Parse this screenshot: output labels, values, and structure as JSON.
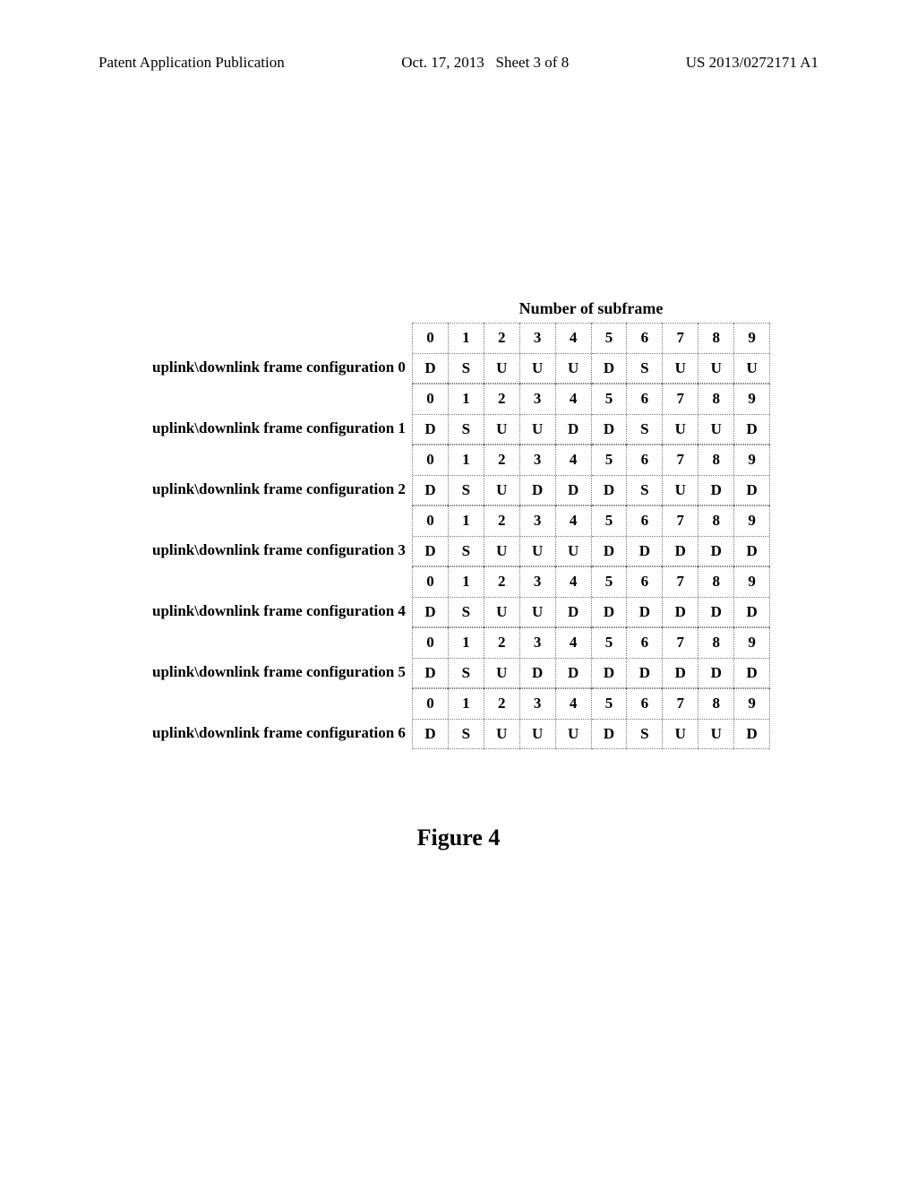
{
  "header": {
    "left": "Patent Application Publication",
    "center": "Oct. 17, 2013   Sheet 3 of 8",
    "right": "US 2013/0272171 A1"
  },
  "table": {
    "title": "Number of subframe",
    "column_headers": [
      "0",
      "1",
      "2",
      "3",
      "4",
      "5",
      "6",
      "7",
      "8",
      "9"
    ],
    "configs": [
      {
        "label": "uplink\\downlink frame configuration 0",
        "values": [
          "D",
          "S",
          "U",
          "U",
          "U",
          "D",
          "S",
          "U",
          "U",
          "U"
        ]
      },
      {
        "label": "uplink\\downlink frame configuration 1",
        "values": [
          "D",
          "S",
          "U",
          "U",
          "D",
          "D",
          "S",
          "U",
          "U",
          "D"
        ]
      },
      {
        "label": "uplink\\downlink frame configuration 2",
        "values": [
          "D",
          "S",
          "U",
          "D",
          "D",
          "D",
          "S",
          "U",
          "D",
          "D"
        ]
      },
      {
        "label": "uplink\\downlink frame configuration 3",
        "values": [
          "D",
          "S",
          "U",
          "U",
          "U",
          "D",
          "D",
          "D",
          "D",
          "D"
        ]
      },
      {
        "label": "uplink\\downlink frame configuration 4",
        "values": [
          "D",
          "S",
          "U",
          "U",
          "D",
          "D",
          "D",
          "D",
          "D",
          "D"
        ]
      },
      {
        "label": "uplink\\downlink frame configuration 5",
        "values": [
          "D",
          "S",
          "U",
          "D",
          "D",
          "D",
          "D",
          "D",
          "D",
          "D"
        ]
      },
      {
        "label": "uplink\\downlink frame configuration 6",
        "values": [
          "D",
          "S",
          "U",
          "U",
          "U",
          "D",
          "S",
          "U",
          "U",
          "D"
        ]
      }
    ]
  },
  "figure_caption": "Figure 4"
}
